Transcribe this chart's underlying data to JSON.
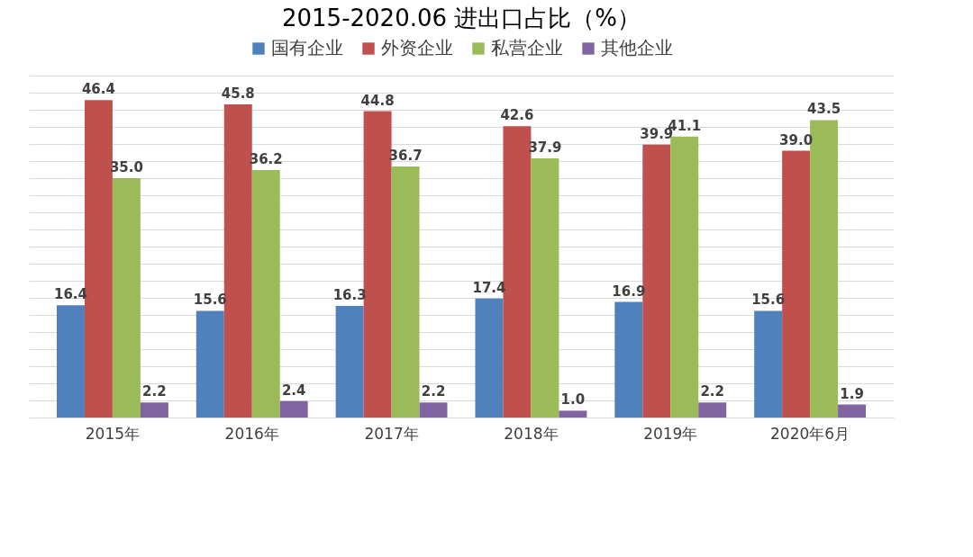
{
  "chart_data": {
    "type": "bar",
    "title": "2015-2020.06 进出口占比（%）",
    "categories": [
      "2015年",
      "2016年",
      "2017年",
      "2018年",
      "2019年",
      "2020年6月"
    ],
    "series": [
      {
        "name": "国有企业",
        "color": "#4f81bd",
        "values": [
          16.4,
          15.6,
          16.3,
          17.4,
          16.9,
          15.6
        ],
        "value_labels": [
          "16.4",
          "15.6",
          "16.3",
          "17.4",
          "16.9",
          "15.6"
        ]
      },
      {
        "name": "外资企业",
        "color": "#c0504d",
        "values": [
          46.4,
          45.8,
          44.8,
          42.6,
          39.9,
          39.0
        ],
        "value_labels": [
          "46.4",
          "45.8",
          "44.8",
          "42.6",
          "39.9",
          "39.0"
        ]
      },
      {
        "name": "私营企业",
        "color": "#9bbb59",
        "values": [
          35.0,
          36.2,
          36.7,
          37.9,
          41.1,
          43.5
        ],
        "value_labels": [
          "35.0",
          "36.2",
          "36.7",
          "37.9",
          "41.1",
          "43.5"
        ]
      },
      {
        "name": "其他企业",
        "color": "#8064a2",
        "values": [
          2.2,
          2.4,
          2.2,
          1.0,
          2.2,
          1.9
        ],
        "value_labels": [
          "2.2",
          "2.4",
          "2.2",
          "1.0",
          "2.2",
          "1.9"
        ]
      }
    ],
    "ylim": [
      0,
      50
    ],
    "yticks": [
      {
        "value": 0,
        "label": null
      },
      {
        "value": 2.5,
        "label": null
      },
      {
        "value": 5,
        "label": null
      },
      {
        "value": 7.5,
        "label": null
      },
      {
        "value": 10,
        "label": null
      },
      {
        "value": 12.5,
        "label": null
      },
      {
        "value": 15,
        "label": null
      },
      {
        "value": 17.5,
        "label": null
      },
      {
        "value": 20,
        "label": null
      },
      {
        "value": 22.5,
        "label": null
      },
      {
        "value": 25,
        "label": null
      },
      {
        "value": 27.5,
        "label": null
      },
      {
        "value": 30,
        "label": null
      },
      {
        "value": 32.5,
        "label": null
      },
      {
        "value": 35,
        "label": null
      },
      {
        "value": 37.5,
        "label": null
      },
      {
        "value": 40,
        "label": null
      },
      {
        "value": 42.5,
        "label": null
      },
      {
        "value": 45,
        "label": null
      },
      {
        "value": 47.5,
        "label": null
      },
      {
        "value": 50,
        "label": null
      }
    ],
    "grid": "y",
    "legend": "top"
  }
}
